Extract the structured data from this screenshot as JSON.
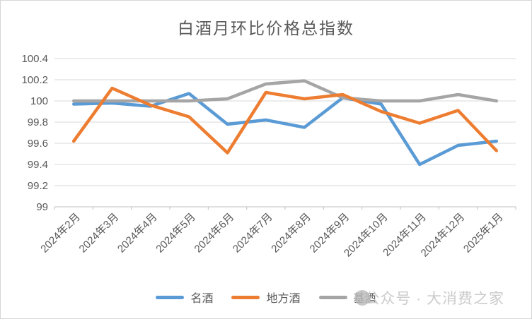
{
  "title": "白酒月环比价格总指数",
  "watermark": {
    "text": "公众号 · 大消费之家"
  },
  "colors": {
    "text": "#595959",
    "grid": "#d9d9d9",
    "axis": "#bfbfbf",
    "watermark_text": "#cbcbcb",
    "watermark_circle": "#b9b9b9",
    "series_blue": "#5B9BD5",
    "series_orange": "#ED7D31",
    "series_gray": "#A5A5A5"
  },
  "chart_data": {
    "type": "line",
    "title": "白酒月环比价格总指数",
    "categories": [
      "2024年2月",
      "2024年3月",
      "2024年4月",
      "2024年5月",
      "2024年6月",
      "2024年7月",
      "2024年8月",
      "2024年9月",
      "2024年10月",
      "2024年11月",
      "2024年12月",
      "2025年1月"
    ],
    "series": [
      {
        "name": "名酒",
        "color": "#5B9BD5",
        "values": [
          99.97,
          99.98,
          99.95,
          100.07,
          99.78,
          99.82,
          99.75,
          100.03,
          99.97,
          99.4,
          99.58,
          99.62
        ]
      },
      {
        "name": "地方酒",
        "color": "#ED7D31",
        "values": [
          99.62,
          100.12,
          99.96,
          99.85,
          99.51,
          100.08,
          100.02,
          100.06,
          99.9,
          99.79,
          99.91,
          99.53
        ]
      },
      {
        "name": "基酒",
        "color": "#A5A5A5",
        "values": [
          100.0,
          100.0,
          100.0,
          100.0,
          100.02,
          100.16,
          100.19,
          100.03,
          100.0,
          100.0,
          100.06,
          100.0
        ]
      }
    ],
    "ylim": [
      99,
      100.4
    ],
    "ytick_step": 0.2,
    "ytick_labels": [
      "100.4",
      "100.2",
      "100",
      "99.8",
      "99.6",
      "99.4",
      "99.2",
      "99"
    ],
    "xlabel": "",
    "ylabel": "",
    "grid": true,
    "legend_position": "bottom",
    "draw_order": [
      0,
      2,
      1
    ]
  }
}
